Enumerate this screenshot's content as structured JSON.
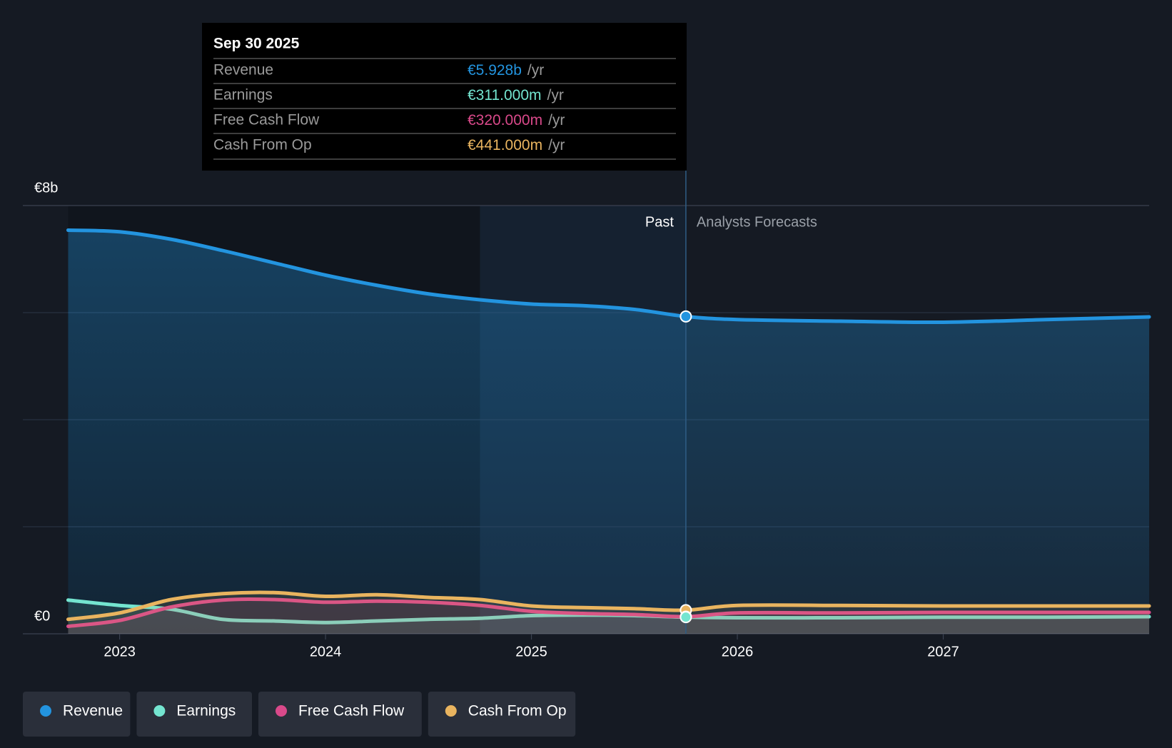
{
  "chart_data": {
    "type": "line",
    "x": [
      2022.75,
      2023.0,
      2023.25,
      2023.5,
      2023.75,
      2024.0,
      2024.25,
      2024.5,
      2024.75,
      2025.0,
      2025.25,
      2025.5,
      2025.75,
      2026.0,
      2026.5,
      2027.0,
      2027.5,
      2028.0
    ],
    "series": [
      {
        "name": "Revenue",
        "color": "#2394df",
        "values": [
          7.54,
          7.51,
          7.37,
          7.16,
          6.93,
          6.7,
          6.51,
          6.35,
          6.24,
          6.16,
          6.13,
          6.06,
          5.928,
          5.87,
          5.84,
          5.82,
          5.87,
          5.92
        ]
      },
      {
        "name": "Earnings",
        "color": "#74e5d0",
        "values": [
          0.63,
          0.53,
          0.46,
          0.27,
          0.24,
          0.21,
          0.24,
          0.27,
          0.29,
          0.34,
          0.35,
          0.34,
          0.311,
          0.3,
          0.3,
          0.31,
          0.31,
          0.32
        ]
      },
      {
        "name": "Free Cash Flow",
        "color": "#d9498a",
        "values": [
          0.14,
          0.25,
          0.5,
          0.63,
          0.64,
          0.59,
          0.61,
          0.59,
          0.53,
          0.42,
          0.38,
          0.36,
          0.32,
          0.39,
          0.39,
          0.4,
          0.4,
          0.4
        ]
      },
      {
        "name": "Cash From Op",
        "color": "#e9b45f",
        "values": [
          0.27,
          0.39,
          0.64,
          0.75,
          0.77,
          0.7,
          0.73,
          0.68,
          0.64,
          0.52,
          0.49,
          0.47,
          0.441,
          0.53,
          0.53,
          0.52,
          0.52,
          0.52
        ]
      }
    ],
    "xlim": [
      2022.53,
      2028
    ],
    "xticks": [
      2023,
      2024,
      2025,
      2026,
      2027
    ],
    "ylim": [
      0,
      8
    ],
    "yticks": [
      {
        "value": 0,
        "label": "€0"
      },
      {
        "value": 8,
        "label": "€8b"
      }
    ],
    "ygrid": [
      0,
      2,
      4,
      6,
      8
    ],
    "forecast_start": 2025.75,
    "past_label": "Past",
    "forecast_label": "Analysts Forecasts",
    "tooltip": {
      "date": "Sep 30 2025",
      "rows": [
        {
          "label": "Revenue",
          "value": "€5.928b",
          "unit": "/yr"
        },
        {
          "label": "Earnings",
          "value": "€311.000m",
          "unit": "/yr"
        },
        {
          "label": "Free Cash Flow",
          "value": "€320.000m",
          "unit": "/yr"
        },
        {
          "label": "Cash From Op",
          "value": "€441.000m",
          "unit": "/yr"
        }
      ]
    }
  }
}
